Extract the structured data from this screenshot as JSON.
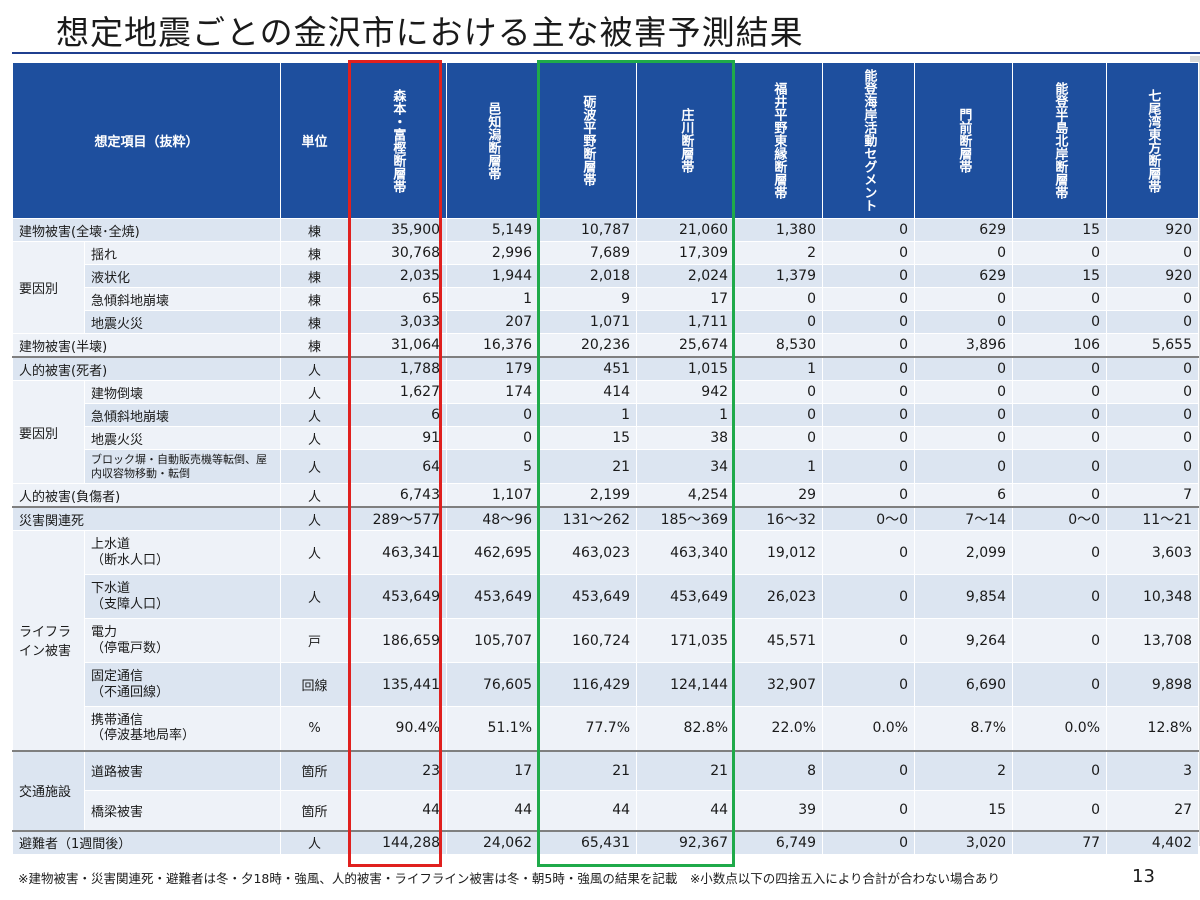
{
  "title": "想定地震ごとの金沢市における主な被害予測結果",
  "header": {
    "item": "想定項目（抜粋）",
    "unit": "単位",
    "faults": [
      "森本・富樫断層帯",
      "邑知潟断層帯",
      "砺波平野断層帯",
      "庄川断層帯",
      "福井平野東縁断層帯",
      "能登海岸活動セグメント",
      "門前断層帯",
      "能登半島北岸断層帯",
      "七尾湾東方断層帯"
    ]
  },
  "groups": {
    "cause1": "要因別",
    "cause2": "要因別",
    "lifeline": "ライフライン被害",
    "traffic": "交通施設"
  },
  "rows": [
    {
      "label": "建物被害(全壊･全焼)",
      "unit": "棟",
      "values": [
        "35,900",
        "5,149",
        "10,787",
        "21,060",
        "1,380",
        "0",
        "629",
        "15",
        "920"
      ]
    },
    {
      "label": "揺れ",
      "unit": "棟",
      "values": [
        "30,768",
        "2,996",
        "7,689",
        "17,309",
        "2",
        "0",
        "0",
        "0",
        "0"
      ]
    },
    {
      "label": "液状化",
      "unit": "棟",
      "values": [
        "2,035",
        "1,944",
        "2,018",
        "2,024",
        "1,379",
        "0",
        "629",
        "15",
        "920"
      ]
    },
    {
      "label": "急傾斜地崩壊",
      "unit": "棟",
      "values": [
        "65",
        "1",
        "9",
        "17",
        "0",
        "0",
        "0",
        "0",
        "0"
      ]
    },
    {
      "label": "地震火災",
      "unit": "棟",
      "values": [
        "3,033",
        "207",
        "1,071",
        "1,711",
        "0",
        "0",
        "0",
        "0",
        "0"
      ]
    },
    {
      "label": "建物被害(半壊)",
      "unit": "棟",
      "values": [
        "31,064",
        "16,376",
        "20,236",
        "25,674",
        "8,530",
        "0",
        "3,896",
        "106",
        "5,655"
      ]
    },
    {
      "label": "人的被害(死者)",
      "unit": "人",
      "values": [
        "1,788",
        "179",
        "451",
        "1,015",
        "1",
        "0",
        "0",
        "0",
        "0"
      ]
    },
    {
      "label": "建物倒壊",
      "unit": "人",
      "values": [
        "1,627",
        "174",
        "414",
        "942",
        "0",
        "0",
        "0",
        "0",
        "0"
      ]
    },
    {
      "label": "急傾斜地崩壊",
      "unit": "人",
      "values": [
        "6",
        "0",
        "1",
        "1",
        "0",
        "0",
        "0",
        "0",
        "0"
      ]
    },
    {
      "label": "地震火災",
      "unit": "人",
      "values": [
        "91",
        "0",
        "15",
        "38",
        "0",
        "0",
        "0",
        "0",
        "0"
      ]
    },
    {
      "label": "ブロック塀・自動販売機等転倒、屋内収容物移動・転倒",
      "unit": "人",
      "values": [
        "64",
        "5",
        "21",
        "34",
        "1",
        "0",
        "0",
        "0",
        "0"
      ]
    },
    {
      "label": "人的被害(負傷者)",
      "unit": "人",
      "values": [
        "6,743",
        "1,107",
        "2,199",
        "4,254",
        "29",
        "0",
        "6",
        "0",
        "7"
      ]
    },
    {
      "label": "災害関連死",
      "unit": "人",
      "values": [
        "289～577",
        "48～96",
        "131～262",
        "185～369",
        "16～32",
        "0～0",
        "7～14",
        "0～0",
        "11～21"
      ]
    },
    {
      "label": "上水道",
      "sub": "（断水人口）",
      "unit": "人",
      "values": [
        "463,341",
        "462,695",
        "463,023",
        "463,340",
        "19,012",
        "0",
        "2,099",
        "0",
        "3,603"
      ]
    },
    {
      "label": "下水道",
      "sub": "（支障人口）",
      "unit": "人",
      "values": [
        "453,649",
        "453,649",
        "453,649",
        "453,649",
        "26,023",
        "0",
        "9,854",
        "0",
        "10,348"
      ]
    },
    {
      "label": "電力",
      "sub": "（停電戸数）",
      "unit": "戸",
      "values": [
        "186,659",
        "105,707",
        "160,724",
        "171,035",
        "45,571",
        "0",
        "9,264",
        "0",
        "13,708"
      ]
    },
    {
      "label": "固定通信",
      "sub": "（不通回線）",
      "unit": "回線",
      "values": [
        "135,441",
        "76,605",
        "116,429",
        "124,144",
        "32,907",
        "0",
        "6,690",
        "0",
        "9,898"
      ]
    },
    {
      "label": "携帯通信",
      "sub": "（停波基地局率）",
      "unit": "%",
      "values": [
        "90.4%",
        "51.1%",
        "77.7%",
        "82.8%",
        "22.0%",
        "0.0%",
        "8.7%",
        "0.0%",
        "12.8%"
      ]
    },
    {
      "label": "道路被害",
      "unit": "箇所",
      "values": [
        "23",
        "17",
        "21",
        "21",
        "8",
        "0",
        "2",
        "0",
        "3"
      ]
    },
    {
      "label": "橋梁被害",
      "unit": "箇所",
      "values": [
        "44",
        "44",
        "44",
        "44",
        "39",
        "0",
        "15",
        "0",
        "27"
      ]
    },
    {
      "label": "避難者（1週間後）",
      "unit": "人",
      "values": [
        "144,288",
        "24,062",
        "65,431",
        "92,367",
        "6,749",
        "0",
        "3,020",
        "77",
        "4,402"
      ]
    }
  ],
  "note": "※建物被害・災害関連死・避難者は冬・夕18時・強風、人的被害・ライフライン被害は冬・朝5時・強風の結果を記載　※小数点以下の四捨五入により合計が合わない場合あり",
  "page_number": "13",
  "colors": {
    "header": "#1e4f9e",
    "red_highlight": "#e0201e",
    "green_highlight": "#1faa4a"
  }
}
